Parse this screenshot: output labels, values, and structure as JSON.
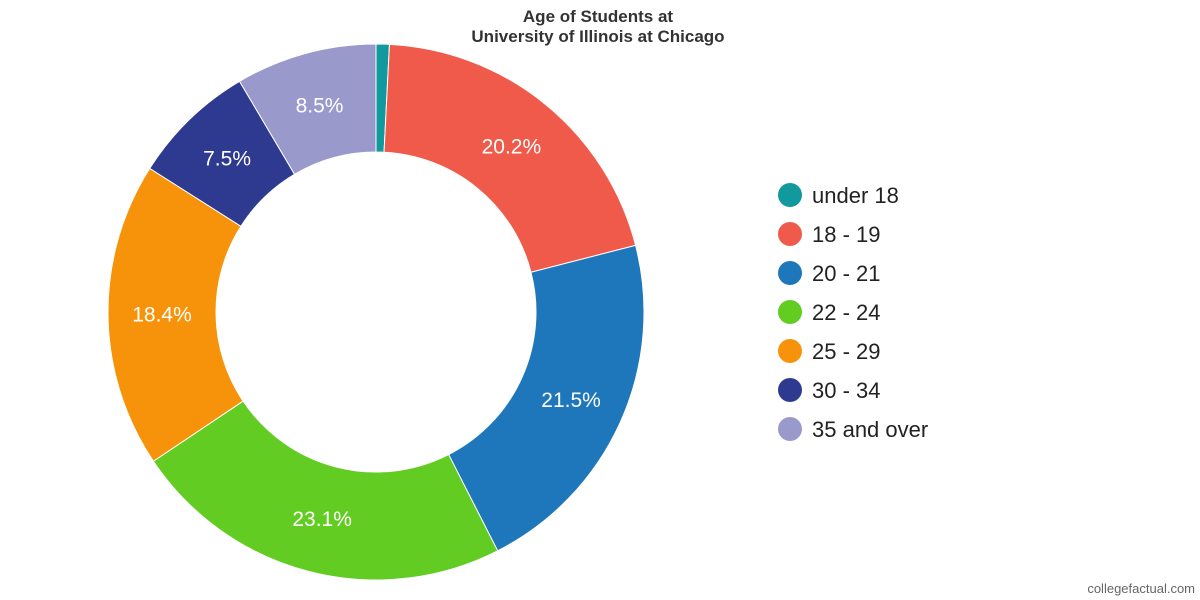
{
  "chart_data": {
    "type": "pie",
    "donut": true,
    "title": "Age of Students at\nUniversity of Illinois at Chicago",
    "categories": [
      "under 18",
      "18 - 19",
      "20 - 21",
      "22 - 24",
      "25 - 29",
      "30 - 34",
      "35 and over"
    ],
    "values": [
      0.8,
      20.2,
      21.5,
      23.1,
      18.4,
      7.5,
      8.5
    ],
    "data_labels": [
      "",
      "20.2%",
      "21.5%",
      "23.1%",
      "18.4%",
      "7.5%",
      "8.5%"
    ],
    "colors": [
      "#11999e",
      "#f05a4a",
      "#1f77bb",
      "#62cc22",
      "#f7930a",
      "#2e3a8f",
      "#9a99cc"
    ],
    "legend_position": "right",
    "unit": "%"
  },
  "credit": "collegefactual.com"
}
